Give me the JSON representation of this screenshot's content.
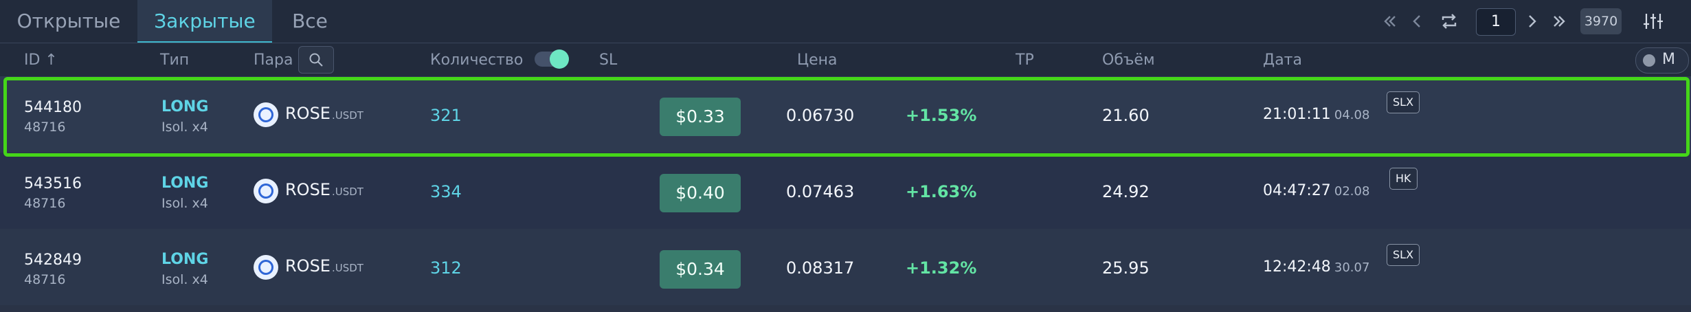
{
  "tabs": [
    "Открытые",
    "Закрытые",
    "Все"
  ],
  "active_tab": 1,
  "pagination": {
    "current_page": "1",
    "total": "3970"
  },
  "columns": {
    "id": "ID ↑",
    "type": "Тип",
    "pair": "Пара",
    "quantity": "Количество",
    "sl": "SL",
    "price": "Цена",
    "tp": "TP",
    "volume": "Объём",
    "date": "Дата"
  },
  "m_toggle_label": "M",
  "rows": [
    {
      "id": "544180",
      "sub_id": "48716",
      "side": "LONG",
      "margin": "Isol. x4",
      "base": "ROSE",
      "quote": ".USDT",
      "quantity": "321",
      "sl": "$0.33",
      "price": "0.06730",
      "change": "+1.53%",
      "volume": "21.60",
      "time": "21:01:11",
      "date": "04.08",
      "tag": "SLX"
    },
    {
      "id": "543516",
      "sub_id": "48716",
      "side": "LONG",
      "margin": "Isol. x4",
      "base": "ROSE",
      "quote": ".USDT",
      "quantity": "334",
      "sl": "$0.40",
      "price": "0.07463",
      "change": "+1.63%",
      "volume": "24.92",
      "time": "04:47:27",
      "date": "02.08",
      "tag": "HK"
    },
    {
      "id": "542849",
      "sub_id": "48716",
      "side": "LONG",
      "margin": "Isol. x4",
      "base": "ROSE",
      "quote": ".USDT",
      "quantity": "312",
      "sl": "$0.34",
      "price": "0.08317",
      "change": "+1.32%",
      "volume": "25.95",
      "time": "12:42:48",
      "date": "30.07",
      "tag": "SLX"
    }
  ],
  "colors": {
    "accent": "#5fd4e6",
    "positive": "#63e4a4",
    "sl_button": "#3a7d6d",
    "highlight": "#45d619",
    "background": "#2a3346"
  },
  "icons": {
    "first_page": "double-chevron-left-icon",
    "prev_page": "chevron-left-icon",
    "refresh": "repeat-icon",
    "next_page": "chevron-right-icon",
    "last_page": "double-chevron-right-icon",
    "settings": "sliders-icon",
    "search": "search-icon"
  }
}
